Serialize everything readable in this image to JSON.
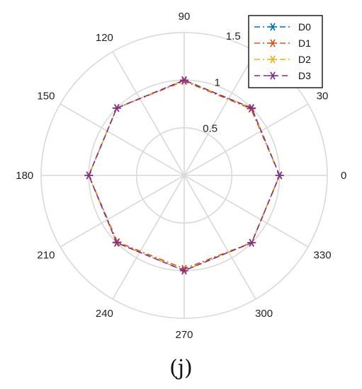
{
  "chart_data": {
    "type": "polar-line",
    "theta_ticks": [
      "0",
      "30",
      "60",
      "90",
      "120",
      "150",
      "180",
      "210",
      "240",
      "270",
      "300",
      "330"
    ],
    "theta_tick_labels_shown": [
      "0",
      "30",
      "90",
      "120",
      "150",
      "180",
      "210",
      "240",
      "270",
      "300",
      "330"
    ],
    "r_ticks": [
      "0.5",
      "1",
      "1.5"
    ],
    "r_range": [
      0,
      1.5
    ],
    "grid": true,
    "legend_position": "top-right",
    "series": [
      {
        "name": "D0",
        "color": "#0072BD",
        "marker": "asterisk",
        "line": "dash-dot",
        "theta": [
          0,
          45,
          90,
          135,
          180,
          225,
          270,
          315,
          360
        ],
        "r": [
          1.0,
          1.0,
          1.0,
          1.0,
          1.0,
          1.0,
          1.0,
          1.0,
          1.0
        ]
      },
      {
        "name": "D1",
        "color": "#D95319",
        "marker": "asterisk",
        "line": "dash-dot",
        "theta": [
          0,
          45,
          90,
          135,
          180,
          225,
          270,
          315,
          360
        ],
        "r": [
          1.0,
          0.99,
          0.99,
          1.0,
          1.0,
          0.99,
          0.98,
          1.0,
          1.0
        ]
      },
      {
        "name": "D2",
        "color": "#EDB120",
        "marker": "asterisk",
        "line": "dash-dot",
        "theta": [
          0,
          45,
          90,
          135,
          180,
          225,
          270,
          315,
          360
        ],
        "r": [
          1.0,
          1.0,
          1.0,
          1.0,
          1.0,
          1.0,
          1.0,
          1.0,
          1.0
        ]
      },
      {
        "name": "D3",
        "color": "#7E2F8E",
        "marker": "asterisk",
        "line": "dash",
        "theta": [
          0,
          45,
          90,
          135,
          180,
          225,
          270,
          315,
          360
        ],
        "r": [
          1.0,
          1.0,
          1.0,
          1.0,
          1.0,
          1.0,
          1.0,
          1.0,
          1.0
        ]
      }
    ]
  },
  "caption": "(j)"
}
